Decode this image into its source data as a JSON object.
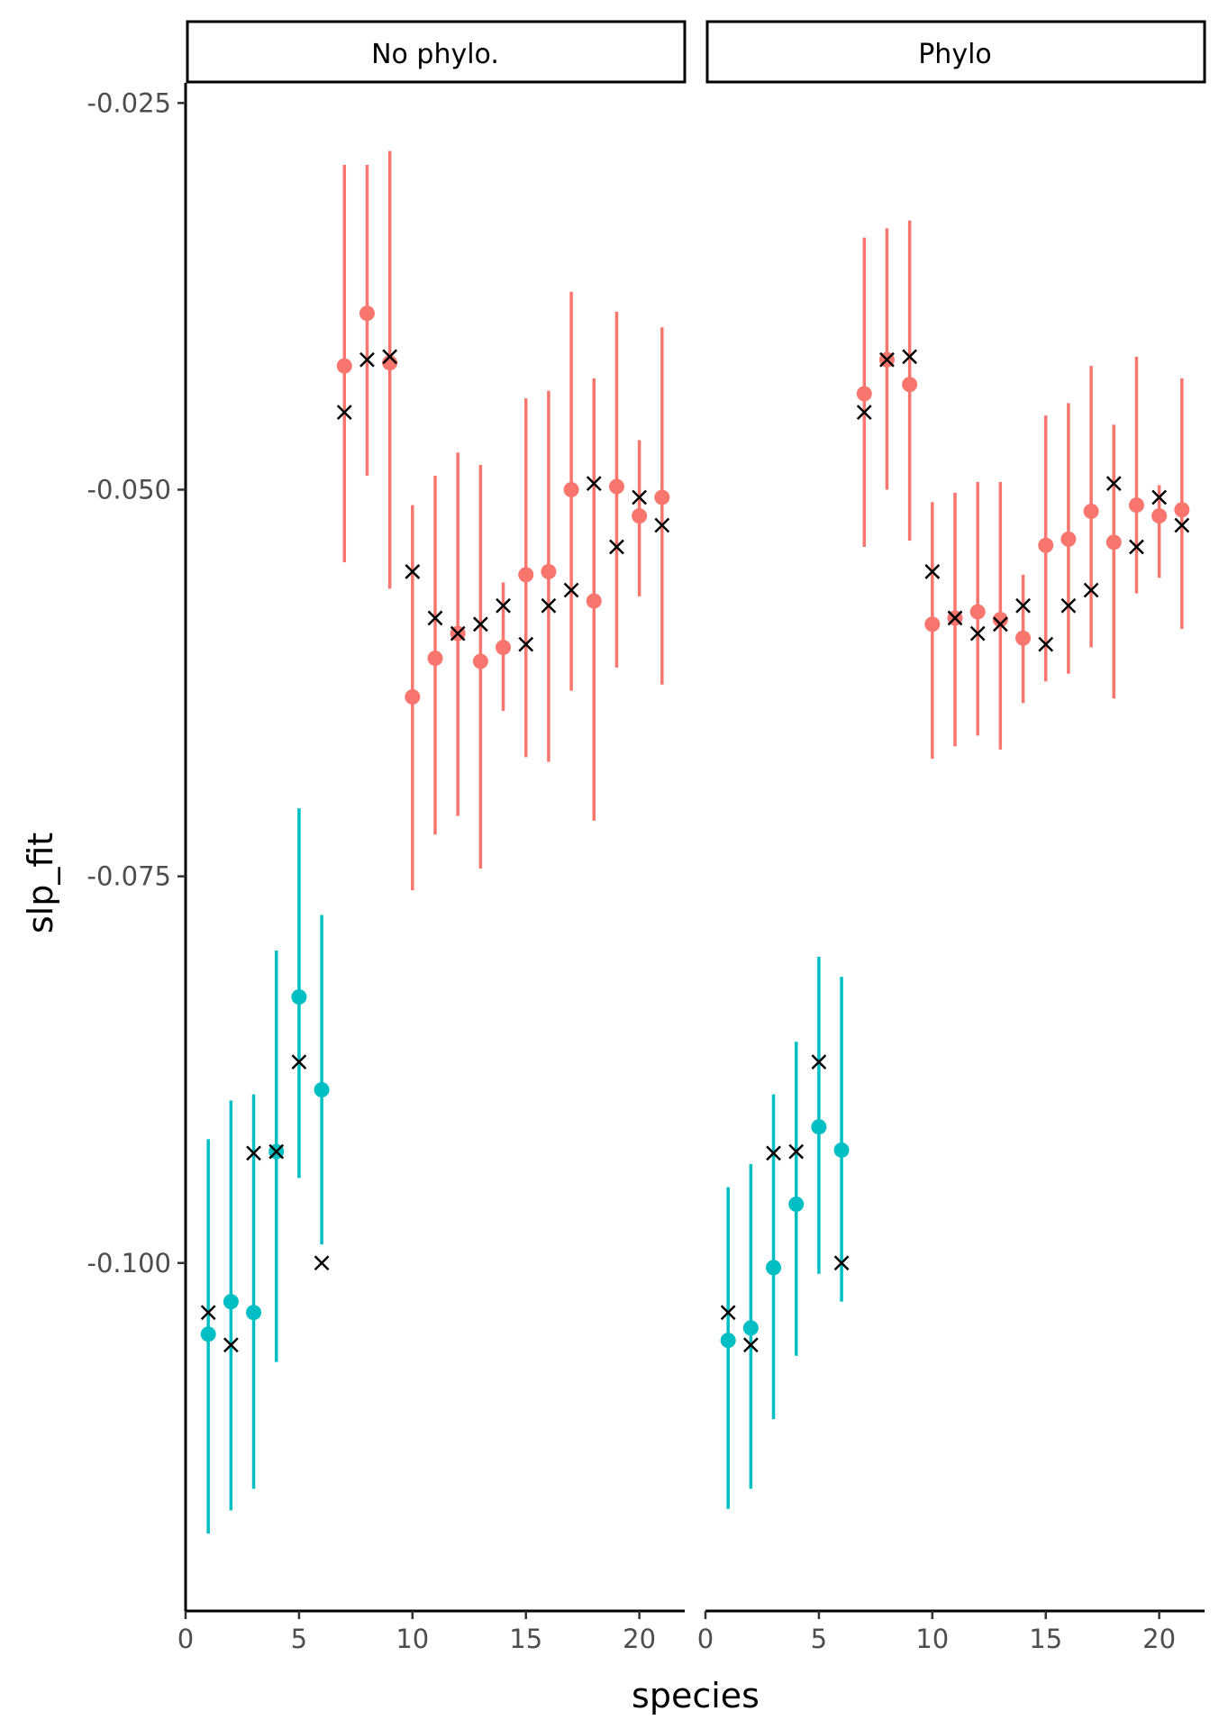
{
  "chart_data": {
    "type": "scatter",
    "xlabel": "species",
    "ylabel": "slp_fit",
    "xlim": [
      0,
      22
    ],
    "ylim": [
      -0.1225,
      -0.0237
    ],
    "x_ticks": [
      0,
      5,
      10,
      15,
      20
    ],
    "y_ticks": [
      -0.025,
      -0.05,
      -0.075,
      -0.1
    ],
    "y_tick_labels": [
      "-0.025",
      "-0.050",
      "-0.075",
      "-0.100"
    ],
    "grid": false,
    "legend": "none",
    "colors": {
      "group_a": "#F8766D",
      "group_b": "#00BFC4",
      "true_marker": "#000000"
    },
    "panels": [
      {
        "label": "No phylo.",
        "estimates": [
          {
            "x": 1,
            "y": -0.1046,
            "lo": -0.1175,
            "hi": -0.092,
            "group": "b"
          },
          {
            "x": 2,
            "y": -0.1025,
            "lo": -0.116,
            "hi": -0.0895,
            "group": "b"
          },
          {
            "x": 3,
            "y": -0.1032,
            "lo": -0.1146,
            "hi": -0.0891,
            "group": "b"
          },
          {
            "x": 4,
            "y": -0.0928,
            "lo": -0.1064,
            "hi": -0.0798,
            "group": "b"
          },
          {
            "x": 5,
            "y": -0.0828,
            "lo": -0.0945,
            "hi": -0.0706,
            "group": "b"
          },
          {
            "x": 6,
            "y": -0.0888,
            "lo": -0.0988,
            "hi": -0.0775,
            "group": "b"
          },
          {
            "x": 7,
            "y": -0.042,
            "lo": -0.0547,
            "hi": -0.029,
            "group": "a"
          },
          {
            "x": 8,
            "y": -0.0386,
            "lo": -0.0491,
            "hi": -0.029,
            "group": "a"
          },
          {
            "x": 9,
            "y": -0.0418,
            "lo": -0.0564,
            "hi": -0.0281,
            "group": "a"
          },
          {
            "x": 10,
            "y": -0.0634,
            "lo": -0.0759,
            "hi": -0.051,
            "group": "a"
          },
          {
            "x": 11,
            "y": -0.0609,
            "lo": -0.0723,
            "hi": -0.0491,
            "group": "a"
          },
          {
            "x": 12,
            "y": -0.0593,
            "lo": -0.0711,
            "hi": -0.0476,
            "group": "a"
          },
          {
            "x": 13,
            "y": -0.0611,
            "lo": -0.0745,
            "hi": -0.0484,
            "group": "a"
          },
          {
            "x": 14,
            "y": -0.0602,
            "lo": -0.0643,
            "hi": -0.056,
            "group": "a"
          },
          {
            "x": 15,
            "y": -0.0555,
            "lo": -0.0673,
            "hi": -0.0441,
            "group": "a"
          },
          {
            "x": 16,
            "y": -0.0553,
            "lo": -0.0676,
            "hi": -0.0436,
            "group": "a"
          },
          {
            "x": 17,
            "y": -0.05,
            "lo": -0.063,
            "hi": -0.0372,
            "group": "a"
          },
          {
            "x": 18,
            "y": -0.0572,
            "lo": -0.0714,
            "hi": -0.0428,
            "group": "a"
          },
          {
            "x": 19,
            "y": -0.0498,
            "lo": -0.0615,
            "hi": -0.0385,
            "group": "a"
          },
          {
            "x": 20,
            "y": -0.0517,
            "lo": -0.0569,
            "hi": -0.0468,
            "group": "a"
          },
          {
            "x": 21,
            "y": -0.0505,
            "lo": -0.0626,
            "hi": -0.0395,
            "group": "a"
          }
        ],
        "true_values": [
          {
            "x": 1,
            "y": -0.1032
          },
          {
            "x": 2,
            "y": -0.1053
          },
          {
            "x": 3,
            "y": -0.0929
          },
          {
            "x": 4,
            "y": -0.0928
          },
          {
            "x": 5,
            "y": -0.087
          },
          {
            "x": 6,
            "y": -0.1
          },
          {
            "x": 7,
            "y": -0.045
          },
          {
            "x": 8,
            "y": -0.0416
          },
          {
            "x": 9,
            "y": -0.0414
          },
          {
            "x": 10,
            "y": -0.0553
          },
          {
            "x": 11,
            "y": -0.0583
          },
          {
            "x": 12,
            "y": -0.0593
          },
          {
            "x": 13,
            "y": -0.0587
          },
          {
            "x": 14,
            "y": -0.0575
          },
          {
            "x": 15,
            "y": -0.06
          },
          {
            "x": 16,
            "y": -0.0575
          },
          {
            "x": 17,
            "y": -0.0565
          },
          {
            "x": 18,
            "y": -0.0496
          },
          {
            "x": 19,
            "y": -0.0537
          },
          {
            "x": 20,
            "y": -0.0505
          },
          {
            "x": 21,
            "y": -0.0523
          }
        ]
      },
      {
        "label": "Phylo",
        "estimates": [
          {
            "x": 1,
            "y": -0.105,
            "lo": -0.1159,
            "hi": -0.0951,
            "group": "b"
          },
          {
            "x": 2,
            "y": -0.1042,
            "lo": -0.1146,
            "hi": -0.0936,
            "group": "b"
          },
          {
            "x": 3,
            "y": -0.1003,
            "lo": -0.1101,
            "hi": -0.0891,
            "group": "b"
          },
          {
            "x": 4,
            "y": -0.0962,
            "lo": -0.106,
            "hi": -0.0857,
            "group": "b"
          },
          {
            "x": 5,
            "y": -0.0912,
            "lo": -0.1007,
            "hi": -0.0802,
            "group": "b"
          },
          {
            "x": 6,
            "y": -0.0927,
            "lo": -0.1025,
            "hi": -0.0815,
            "group": "b"
          },
          {
            "x": 7,
            "y": -0.0438,
            "lo": -0.0537,
            "hi": -0.0337,
            "group": "a"
          },
          {
            "x": 8,
            "y": -0.0416,
            "lo": -0.05,
            "hi": -0.0331,
            "group": "a"
          },
          {
            "x": 9,
            "y": -0.0432,
            "lo": -0.0533,
            "hi": -0.0326,
            "group": "a"
          },
          {
            "x": 10,
            "y": -0.0587,
            "lo": -0.0674,
            "hi": -0.0508,
            "group": "a"
          },
          {
            "x": 11,
            "y": -0.0583,
            "lo": -0.0666,
            "hi": -0.0502,
            "group": "a"
          },
          {
            "x": 12,
            "y": -0.0579,
            "lo": -0.0659,
            "hi": -0.0495,
            "group": "a"
          },
          {
            "x": 13,
            "y": -0.0584,
            "lo": -0.0668,
            "hi": -0.0495,
            "group": "a"
          },
          {
            "x": 14,
            "y": -0.0596,
            "lo": -0.0638,
            "hi": -0.0555,
            "group": "a"
          },
          {
            "x": 15,
            "y": -0.0536,
            "lo": -0.0624,
            "hi": -0.0452,
            "group": "a"
          },
          {
            "x": 16,
            "y": -0.0532,
            "lo": -0.0619,
            "hi": -0.0444,
            "group": "a"
          },
          {
            "x": 17,
            "y": -0.0514,
            "lo": -0.0602,
            "hi": -0.042,
            "group": "a"
          },
          {
            "x": 18,
            "y": -0.0534,
            "lo": -0.0635,
            "hi": -0.0458,
            "group": "a"
          },
          {
            "x": 19,
            "y": -0.051,
            "lo": -0.0567,
            "hi": -0.0414,
            "group": "a"
          },
          {
            "x": 20,
            "y": -0.0517,
            "lo": -0.0557,
            "hi": -0.0497,
            "group": "a"
          },
          {
            "x": 21,
            "y": -0.0513,
            "lo": -0.059,
            "hi": -0.0428,
            "group": "a"
          }
        ],
        "true_values": [
          {
            "x": 1,
            "y": -0.1032
          },
          {
            "x": 2,
            "y": -0.1053
          },
          {
            "x": 3,
            "y": -0.0929
          },
          {
            "x": 4,
            "y": -0.0928
          },
          {
            "x": 5,
            "y": -0.087
          },
          {
            "x": 6,
            "y": -0.1
          },
          {
            "x": 7,
            "y": -0.045
          },
          {
            "x": 8,
            "y": -0.0416
          },
          {
            "x": 9,
            "y": -0.0414
          },
          {
            "x": 10,
            "y": -0.0553
          },
          {
            "x": 11,
            "y": -0.0583
          },
          {
            "x": 12,
            "y": -0.0593
          },
          {
            "x": 13,
            "y": -0.0587
          },
          {
            "x": 14,
            "y": -0.0575
          },
          {
            "x": 15,
            "y": -0.06
          },
          {
            "x": 16,
            "y": -0.0575
          },
          {
            "x": 17,
            "y": -0.0565
          },
          {
            "x": 18,
            "y": -0.0496
          },
          {
            "x": 19,
            "y": -0.0537
          },
          {
            "x": 20,
            "y": -0.0505
          },
          {
            "x": 21,
            "y": -0.0523
          }
        ]
      }
    ]
  }
}
